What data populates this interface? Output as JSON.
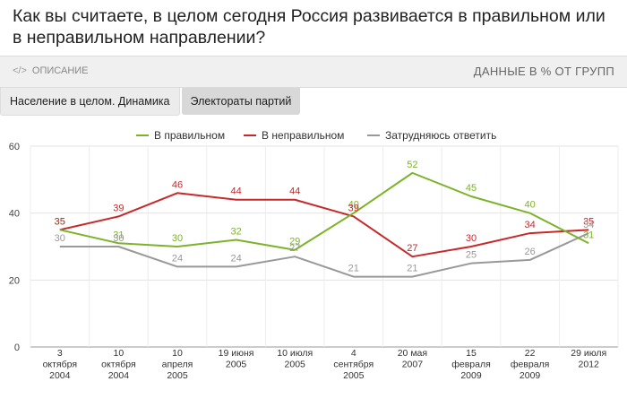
{
  "title": "Как вы считаете, в целом сегодня Россия развивается в правильном или в неправильном направлении?",
  "toolbar": {
    "description_label": "ОПИСАНИЕ",
    "description_icon": "code-icon",
    "units_label": "ДАННЫЕ В % ОТ ГРУПП"
  },
  "tabs": [
    {
      "label": "Население в целом. Динамика"
    },
    {
      "label": "Электораты партий"
    }
  ],
  "chart_data": {
    "type": "line",
    "categories": [
      [
        "3",
        "октября",
        "2004"
      ],
      [
        "10",
        "октября",
        "2004"
      ],
      [
        "10",
        "апреля",
        "2005"
      ],
      [
        "19 июня",
        "2005"
      ],
      [
        "10 июля",
        "2005"
      ],
      [
        "4",
        "сентября",
        "2005"
      ],
      [
        "20 мая",
        "2007"
      ],
      [
        "15",
        "февраля",
        "2009"
      ],
      [
        "22",
        "февраля",
        "2009"
      ],
      [
        "29 июля",
        "2012"
      ]
    ],
    "ylim": [
      0,
      60
    ],
    "yticks": [
      "0",
      "20",
      "40",
      "60"
    ],
    "legend_position": "top",
    "series": [
      {
        "name": "В правильном",
        "color": "#7cb32b",
        "values": [
          35,
          31,
          30,
          32,
          29,
          40,
          52,
          45,
          40,
          31
        ]
      },
      {
        "name": "В неправильном",
        "color": "#c8282a",
        "values": [
          35,
          39,
          46,
          44,
          44,
          39,
          27,
          30,
          34,
          35
        ]
      },
      {
        "name": "Затрудняюсь ответить",
        "color": "#999999",
        "values": [
          30,
          30,
          24,
          24,
          27,
          21,
          21,
          25,
          26,
          34
        ]
      }
    ]
  }
}
